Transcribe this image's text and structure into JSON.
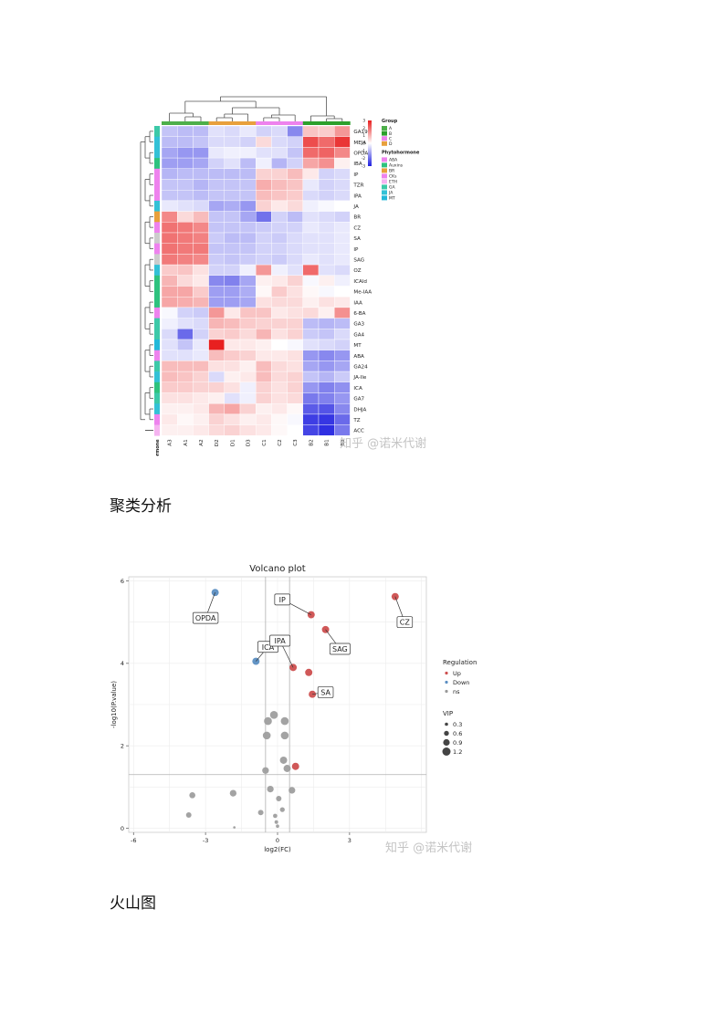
{
  "captions": {
    "heatmap": "聚类分析",
    "volcano": "火山图"
  },
  "watermarks": {
    "heatmap": "知乎 @诺米代谢",
    "volcano": "知乎 @诺米代谢"
  },
  "chart_data": [
    {
      "type": "heatmap",
      "title": "",
      "columns": [
        "A3",
        "A1",
        "A2",
        "D2",
        "D1",
        "D3",
        "C1",
        "C2",
        "C3",
        "B2",
        "B1",
        "B3"
      ],
      "column_groups": [
        "A",
        "A",
        "A",
        "D",
        "D",
        "D",
        "C",
        "C",
        "C",
        "B",
        "B",
        "B"
      ],
      "rows": [
        "GA19",
        "MEJA",
        "OPDA",
        "IBA",
        "IP",
        "TZR",
        "IPA",
        "JA",
        "BR",
        "CZ",
        "SA",
        "IP",
        "SAG",
        "OZ",
        "ICAld",
        "Me-IAA",
        "IAA",
        "6-BA",
        "GA3",
        "GA4",
        "MT",
        "ABA",
        "GA24",
        "JA-Ile",
        "ICA",
        "GA7",
        "DHJA",
        "TZ",
        "ACC"
      ],
      "row_classes": [
        "GA",
        "JA",
        "JA",
        "Auxins",
        "CKs",
        "CKs",
        "CKs",
        "JA",
        "BR",
        "CKs",
        "SA",
        "CKs",
        "SA",
        "JA",
        "Auxins",
        "Auxins",
        "Auxins",
        "CKs",
        "GA",
        "GA",
        "MT",
        "ABA",
        "GA",
        "JA",
        "Auxins",
        "GA",
        "JA",
        "CKs",
        "ETH"
      ],
      "values": [
        [
          -0.8,
          -0.9,
          -0.9,
          -0.4,
          -0.5,
          -0.3,
          -0.6,
          -0.5,
          -1.6,
          0.8,
          0.7,
          1.4
        ],
        [
          -0.9,
          -0.9,
          -0.8,
          -0.5,
          -0.5,
          -0.6,
          0.5,
          -0.5,
          -0.6,
          2.4,
          2.0,
          2.7
        ],
        [
          -1.2,
          -1.4,
          -1.4,
          -0.3,
          -0.2,
          -0.2,
          -0.4,
          -0.4,
          -0.8,
          2.0,
          2.1,
          1.6
        ],
        [
          -1.3,
          -1.3,
          -1.2,
          -0.6,
          -0.4,
          -0.9,
          -0.2,
          -1.0,
          -0.6,
          1.2,
          1.5,
          0.2
        ],
        [
          -1.0,
          -0.9,
          -0.9,
          -0.9,
          -0.9,
          -0.9,
          0.6,
          0.6,
          0.9,
          0.3,
          -0.6,
          -0.5
        ],
        [
          -0.8,
          -0.8,
          -1.0,
          -0.8,
          -0.8,
          -0.8,
          1.1,
          0.9,
          0.8,
          -0.3,
          -0.6,
          -0.5
        ],
        [
          -0.8,
          -0.8,
          -0.9,
          -0.8,
          -0.8,
          -0.8,
          0.9,
          0.8,
          0.7,
          -0.5,
          -0.6,
          -0.5
        ],
        [
          -0.3,
          -0.4,
          -0.5,
          -1.2,
          -1.1,
          -1.4,
          0.6,
          0.3,
          0.5,
          -0.2,
          -0.1,
          0.0
        ],
        [
          1.6,
          0.5,
          0.9,
          -0.8,
          -0.8,
          -1.2,
          -1.9,
          -0.6,
          -0.9,
          -0.4,
          -0.5,
          -0.6
        ],
        [
          1.9,
          1.8,
          1.6,
          -0.8,
          -0.8,
          -0.8,
          -0.7,
          -0.6,
          -0.6,
          -0.3,
          -0.4,
          -0.3
        ],
        [
          1.9,
          1.8,
          1.7,
          -0.7,
          -0.9,
          -0.9,
          -0.6,
          -0.7,
          -0.5,
          -0.4,
          -0.4,
          -0.3
        ],
        [
          1.9,
          1.8,
          1.8,
          -0.8,
          -0.8,
          -0.8,
          -0.6,
          -0.6,
          -0.5,
          -0.4,
          -0.4,
          -0.3
        ],
        [
          1.8,
          1.7,
          1.6,
          -0.7,
          -0.8,
          -0.7,
          -0.6,
          -0.7,
          -0.5,
          -0.3,
          -0.4,
          -0.3
        ],
        [
          0.7,
          0.8,
          0.4,
          -0.6,
          -0.6,
          -0.2,
          1.4,
          -0.2,
          -0.4,
          2.0,
          -0.4,
          -0.5
        ],
        [
          1.0,
          0.5,
          0.3,
          -1.6,
          -1.7,
          -1.2,
          0.2,
          0.3,
          0.6,
          -0.1,
          0.2,
          -0.2
        ],
        [
          1.2,
          1.2,
          0.7,
          -1.3,
          -1.3,
          -1.1,
          0.1,
          0.7,
          0.4,
          0.1,
          -0.1,
          0.0
        ],
        [
          1.2,
          1.1,
          1.0,
          -1.3,
          -1.3,
          -1.2,
          0.4,
          0.5,
          0.5,
          0.2,
          0.4,
          0.3
        ],
        [
          -0.1,
          -0.6,
          -0.7,
          1.4,
          0.3,
          0.8,
          0.8,
          0.3,
          0.4,
          0.5,
          0.2,
          1.5
        ],
        [
          -0.2,
          -0.4,
          -0.5,
          1.0,
          0.9,
          0.7,
          0.6,
          0.6,
          0.6,
          -0.9,
          -1.0,
          -0.9
        ],
        [
          -0.5,
          -2.0,
          -0.6,
          0.6,
          0.7,
          0.5,
          1.0,
          0.4,
          0.6,
          -0.7,
          -0.8,
          -0.5
        ],
        [
          -0.4,
          -0.8,
          -0.3,
          3.0,
          0.3,
          0.3,
          0.2,
          0.0,
          -0.1,
          -0.4,
          -0.5,
          -0.6
        ],
        [
          -0.4,
          -0.4,
          -0.3,
          0.9,
          0.7,
          0.6,
          0.3,
          0.3,
          0.4,
          -1.4,
          -1.6,
          -1.4
        ],
        [
          0.9,
          0.9,
          0.9,
          0.4,
          0.4,
          0.2,
          0.9,
          0.5,
          0.4,
          -1.2,
          -1.4,
          -1.2
        ],
        [
          0.9,
          0.8,
          0.6,
          -0.5,
          0.2,
          0.3,
          0.9,
          0.5,
          0.6,
          -0.8,
          -1.0,
          -0.7
        ],
        [
          0.7,
          0.7,
          0.6,
          0.6,
          0.4,
          -0.2,
          0.6,
          0.4,
          0.6,
          -1.4,
          -1.7,
          -1.5
        ],
        [
          0.4,
          0.4,
          0.3,
          0.2,
          -0.4,
          -0.2,
          0.6,
          0.4,
          0.5,
          -1.8,
          -1.7,
          -1.4
        ],
        [
          0.2,
          0.2,
          0.3,
          1.0,
          1.2,
          0.6,
          0.2,
          0.3,
          0.1,
          -2.2,
          -2.3,
          -1.6
        ],
        [
          0.3,
          0.1,
          0.2,
          0.6,
          0.4,
          0.2,
          0.3,
          0.1,
          -0.1,
          -2.6,
          -2.7,
          -2.0
        ],
        [
          0.2,
          0.2,
          0.3,
          0.5,
          0.6,
          0.4,
          0.3,
          0.1,
          0.0,
          -2.5,
          -2.8,
          -1.8
        ]
      ],
      "row_annotation_label": "Phytohormone",
      "colorbar": {
        "ticks": [
          3,
          2,
          1,
          0,
          -1,
          -2,
          -3
        ]
      },
      "legend_group": {
        "title": "Group",
        "items": [
          {
            "label": "A",
            "color": "#4daf4a"
          },
          {
            "label": "B",
            "color": "#2ca02c"
          },
          {
            "label": "C",
            "color": "#ee82ee"
          },
          {
            "label": "D",
            "color": "#e8a03c"
          }
        ]
      },
      "legend_phytohormone": {
        "title": "Phytohormone",
        "items": [
          {
            "label": "ABA",
            "color": "#ee82ee"
          },
          {
            "label": "Auxins",
            "color": "#2ec27e"
          },
          {
            "label": "BR",
            "color": "#e8a03c"
          },
          {
            "label": "CKs",
            "color": "#ee82ee"
          },
          {
            "label": "ETH",
            "color": "#f5b3f0"
          },
          {
            "label": "GA",
            "color": "#3cc9a8"
          },
          {
            "label": "JA",
            "color": "#33c1d6"
          },
          {
            "label": "MT",
            "color": "#22b8d9"
          }
        ]
      },
      "colors": {
        "high": "#e82020",
        "mid": "#ffffff",
        "low": "#2020e0"
      }
    },
    {
      "type": "scatter",
      "title": "Volcano plot",
      "xlabel": "log2(FC)",
      "ylabel": "-log10(P.value)",
      "xlim": [
        -6.2,
        6.2
      ],
      "ylim": [
        -0.1,
        6.1
      ],
      "xticks": [
        -6,
        -3,
        0,
        3
      ],
      "yticks": [
        0,
        2,
        4,
        6
      ],
      "vlines": [
        -0.5,
        0.5
      ],
      "hline": 1.3,
      "points": [
        {
          "x": -2.6,
          "y": 5.72,
          "vip": 0.9,
          "group": "Down",
          "label": "OPDA"
        },
        {
          "x": -0.9,
          "y": 4.05,
          "vip": 0.9,
          "group": "Down",
          "label": "ICA"
        },
        {
          "x": 1.4,
          "y": 5.18,
          "vip": 0.9,
          "group": "Up",
          "label": "IP"
        },
        {
          "x": 4.9,
          "y": 5.62,
          "vip": 0.9,
          "group": "Up",
          "label": "CZ"
        },
        {
          "x": 2.0,
          "y": 4.82,
          "vip": 0.9,
          "group": "Up",
          "label": "SAG"
        },
        {
          "x": 0.65,
          "y": 3.9,
          "vip": 0.9,
          "group": "Up",
          "label": "IPA"
        },
        {
          "x": 1.3,
          "y": 3.78,
          "vip": 0.9,
          "group": "Up",
          "label": ""
        },
        {
          "x": 1.45,
          "y": 3.25,
          "vip": 0.9,
          "group": "Up",
          "label": "SA"
        },
        {
          "x": 0.75,
          "y": 1.5,
          "vip": 0.9,
          "group": "Up",
          "label": ""
        },
        {
          "x": -0.15,
          "y": 2.75,
          "vip": 1.0,
          "group": "ns",
          "label": ""
        },
        {
          "x": -0.4,
          "y": 2.6,
          "vip": 1.0,
          "group": "ns",
          "label": ""
        },
        {
          "x": 0.3,
          "y": 2.6,
          "vip": 1.0,
          "group": "ns",
          "label": ""
        },
        {
          "x": -0.45,
          "y": 2.25,
          "vip": 1.0,
          "group": "ns",
          "label": ""
        },
        {
          "x": 0.3,
          "y": 2.25,
          "vip": 1.0,
          "group": "ns",
          "label": ""
        },
        {
          "x": 0.25,
          "y": 1.65,
          "vip": 0.9,
          "group": "ns",
          "label": ""
        },
        {
          "x": 0.4,
          "y": 1.45,
          "vip": 0.9,
          "group": "ns",
          "label": ""
        },
        {
          "x": -0.5,
          "y": 1.4,
          "vip": 0.8,
          "group": "ns",
          "label": ""
        },
        {
          "x": -0.3,
          "y": 0.95,
          "vip": 0.8,
          "group": "ns",
          "label": ""
        },
        {
          "x": 0.6,
          "y": 0.92,
          "vip": 0.8,
          "group": "ns",
          "label": ""
        },
        {
          "x": -1.85,
          "y": 0.85,
          "vip": 0.8,
          "group": "ns",
          "label": ""
        },
        {
          "x": -3.55,
          "y": 0.8,
          "vip": 0.7,
          "group": "ns",
          "label": ""
        },
        {
          "x": 0.05,
          "y": 0.72,
          "vip": 0.6,
          "group": "ns",
          "label": ""
        },
        {
          "x": 0.2,
          "y": 0.45,
          "vip": 0.5,
          "group": "ns",
          "label": ""
        },
        {
          "x": -0.7,
          "y": 0.38,
          "vip": 0.6,
          "group": "ns",
          "label": ""
        },
        {
          "x": -3.7,
          "y": 0.32,
          "vip": 0.6,
          "group": "ns",
          "label": ""
        },
        {
          "x": -0.1,
          "y": 0.3,
          "vip": 0.4,
          "group": "ns",
          "label": ""
        },
        {
          "x": -0.05,
          "y": 0.15,
          "vip": 0.3,
          "group": "ns",
          "label": ""
        },
        {
          "x": 0.0,
          "y": 0.05,
          "vip": 0.25,
          "group": "ns",
          "label": ""
        },
        {
          "x": -1.8,
          "y": 0.02,
          "vip": 0.1,
          "group": "ns",
          "label": ""
        }
      ],
      "legend_regulation": {
        "title": "Regulation",
        "items": [
          {
            "label": "Up",
            "color": "#cd4f4f"
          },
          {
            "label": "Down",
            "color": "#5b8ec2"
          },
          {
            "label": "ns",
            "color": "#999999"
          }
        ]
      },
      "legend_vip": {
        "title": "VIP",
        "items": [
          "0.3",
          "0.6",
          "0.9",
          "1.2"
        ]
      },
      "colors": {
        "Up": "#cd4f4f",
        "Down": "#5b8ec2",
        "ns": "#9e9e9e"
      }
    }
  ]
}
